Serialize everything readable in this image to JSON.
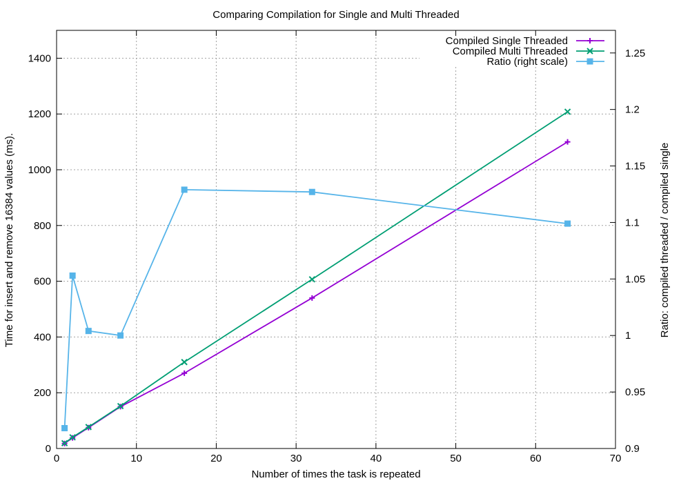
{
  "chart_data": {
    "type": "line",
    "title": "Comparing Compilation for Single and Multi Threaded",
    "xlabel": "Number of times the task is repeated",
    "ylabel": "Time for insert and remove 16384 values (ms).",
    "y2label": "Ratio: compiled threaded / compiled single",
    "xlim": [
      0,
      70
    ],
    "ylim": [
      0,
      1500
    ],
    "y2lim": [
      0.9,
      1.27
    ],
    "xticks": [
      0,
      10,
      20,
      30,
      40,
      50,
      60,
      70
    ],
    "yticks": [
      0,
      200,
      400,
      600,
      800,
      1000,
      1200,
      1400
    ],
    "y2ticks": [
      0.9,
      0.95,
      1,
      1.05,
      1.1,
      1.15,
      1.2,
      1.25
    ],
    "xtick_labels": [
      "0",
      "10",
      "20",
      "30",
      "40",
      "50",
      "60",
      "70"
    ],
    "ytick_labels": [
      "0",
      "200",
      "400",
      "600",
      "800",
      "1000",
      "1200",
      "1400"
    ],
    "y2tick_labels": [
      "0.9",
      "0.95",
      "1",
      "1.05",
      "1.1",
      "1.15",
      "1.2",
      "1.25"
    ],
    "grid": true,
    "legend_position": "top-right",
    "x": [
      1,
      2,
      4,
      8,
      16,
      32,
      64
    ],
    "series": [
      {
        "name": "Compiled Single Threaded",
        "axis": "left",
        "color": "#9400d3",
        "marker": "plus",
        "values": [
          18,
          38,
          75,
          150,
          270,
          540,
          1100
        ]
      },
      {
        "name": "Compiled Multi Threaded",
        "axis": "left",
        "color": "#009e73",
        "marker": "cross",
        "values": [
          19,
          40,
          77,
          152,
          310,
          607,
          1208
        ]
      },
      {
        "name": "Ratio (right scale)",
        "axis": "right",
        "color": "#56b4e9",
        "marker": "square-x",
        "values": [
          0.918,
          1.053,
          1.004,
          1.0,
          1.129,
          1.127,
          1.099
        ]
      }
    ]
  }
}
